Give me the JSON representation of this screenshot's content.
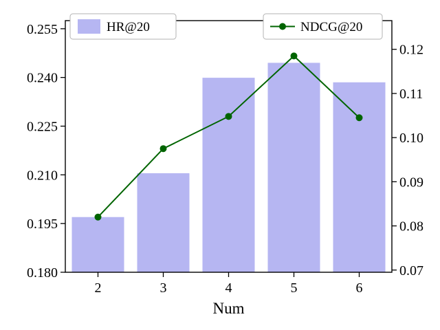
{
  "chart_data": {
    "type": "bar+line",
    "dual_axis": true,
    "title": "",
    "xlabel": "Num",
    "categories": [
      "2",
      "3",
      "4",
      "5",
      "6"
    ],
    "series": [
      {
        "name": "HR@20",
        "type": "bar",
        "axis": "left",
        "color": "#b6b6f2",
        "values": [
          0.197,
          0.2105,
          0.2399,
          0.2445,
          0.2385
        ]
      },
      {
        "name": "NDCG@20",
        "type": "line",
        "axis": "right",
        "color": "#006400",
        "marker": "circle",
        "values": [
          0.082,
          0.0975,
          0.1048,
          0.1185,
          0.1045
        ]
      }
    ],
    "left_axis": {
      "min": 0.18,
      "max": 0.2575,
      "ticks": [
        {
          "v": 0.18,
          "label": "0.180"
        },
        {
          "v": 0.195,
          "label": "0.195"
        },
        {
          "v": 0.21,
          "label": "0.210"
        },
        {
          "v": 0.225,
          "label": "0.225"
        },
        {
          "v": 0.24,
          "label": "0.240"
        },
        {
          "v": 0.255,
          "label": "0.255"
        }
      ]
    },
    "right_axis": {
      "min": 0.0695,
      "max": 0.1265,
      "ticks": [
        {
          "v": 0.07,
          "label": "0.07"
        },
        {
          "v": 0.08,
          "label": "0.08"
        },
        {
          "v": 0.09,
          "label": "0.09"
        },
        {
          "v": 0.1,
          "label": "0.10"
        },
        {
          "v": 0.11,
          "label": "0.11"
        },
        {
          "v": 0.12,
          "label": "0.12"
        }
      ]
    },
    "legend": [
      {
        "name": "HR@20",
        "position": "top-left",
        "swatch": "bar"
      },
      {
        "name": "NDCG@20",
        "position": "top-right",
        "swatch": "line-marker"
      }
    ],
    "grid": false,
    "colors": {
      "bar_fill": "#b6b6f2",
      "line": "#006400",
      "axis": "#000000",
      "legend_border": "#b3b3b3",
      "text": "#000000"
    }
  }
}
